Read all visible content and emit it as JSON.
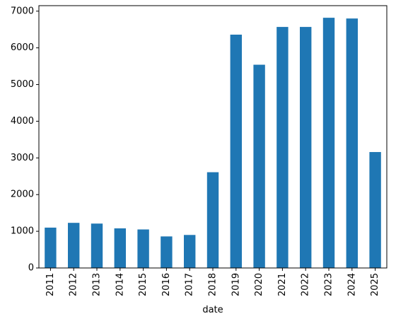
{
  "chart_data": {
    "type": "bar",
    "categories": [
      "2011",
      "2012",
      "2013",
      "2014",
      "2015",
      "2016",
      "2017",
      "2018",
      "2019",
      "2020",
      "2021",
      "2022",
      "2023",
      "2024",
      "2025"
    ],
    "values": [
      1100,
      1230,
      1210,
      1080,
      1050,
      860,
      900,
      2610,
      6360,
      5540,
      6570,
      6570,
      6820,
      6800,
      3160
    ],
    "title": "",
    "xlabel": "date",
    "ylabel": "",
    "ylim": [
      0,
      7150
    ],
    "yticks": [
      0,
      1000,
      2000,
      3000,
      4000,
      5000,
      6000,
      7000
    ],
    "grid": false,
    "bar_color": "#1f77b4"
  }
}
